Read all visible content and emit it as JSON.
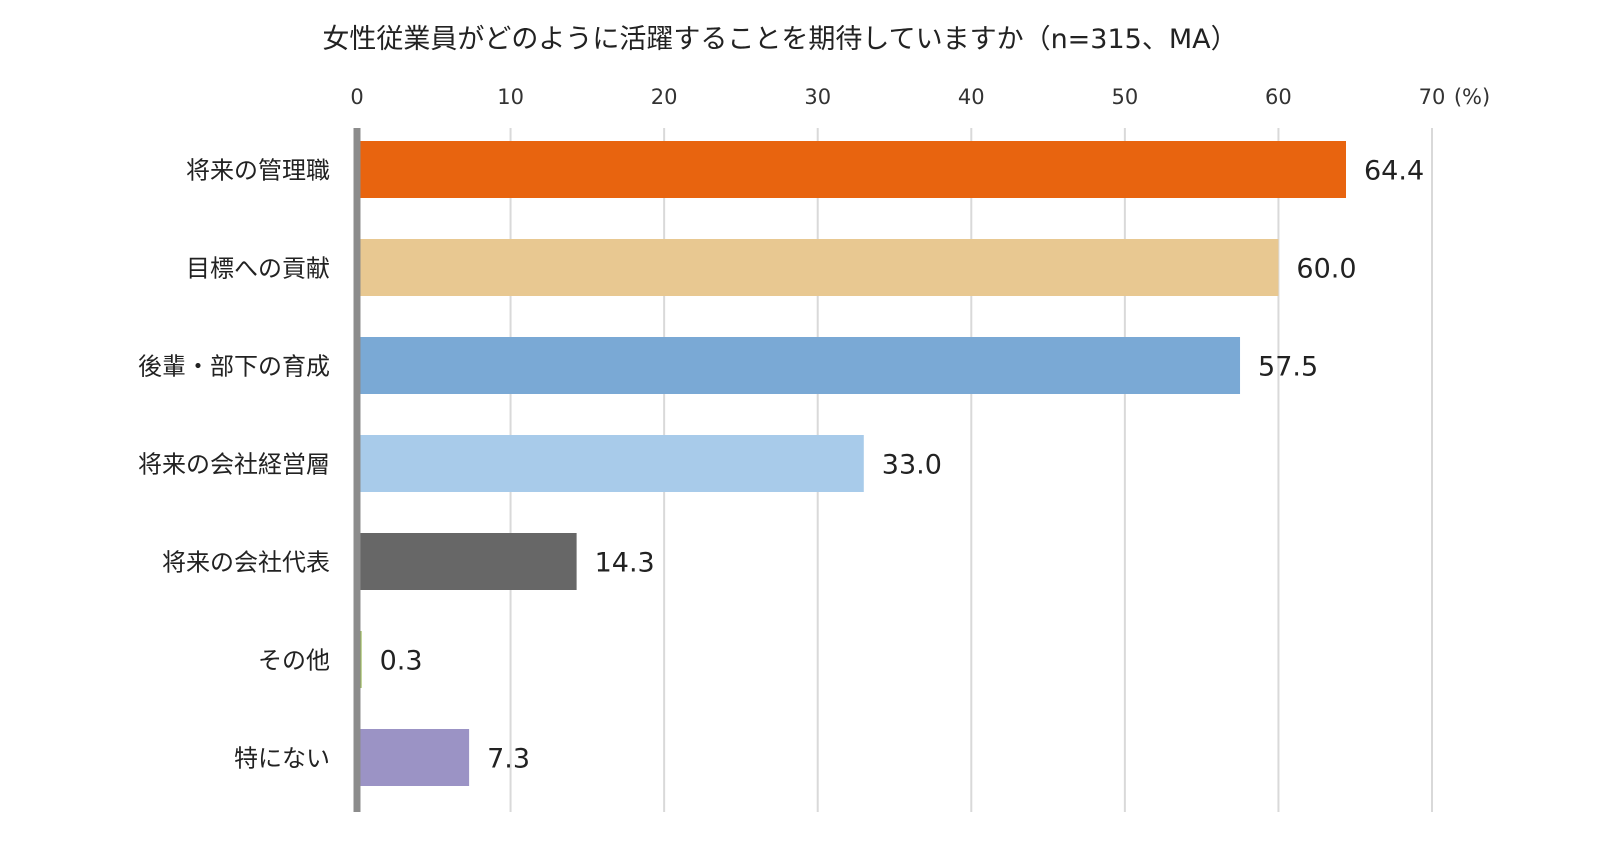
{
  "chart_data": {
    "type": "bar",
    "orientation": "horizontal",
    "title": "女性従業員がどのように活躍することを期待していますか（n=315、MA）",
    "unit_label": "(%)",
    "xlim": [
      0,
      70
    ],
    "ticks": [
      0,
      10,
      20,
      30,
      40,
      50,
      60,
      70
    ],
    "tick_labels": [
      "0",
      "10",
      "20",
      "30",
      "40",
      "50",
      "60",
      "70"
    ],
    "grid": true,
    "axis_position": "top",
    "categories": [
      "将来の管理職",
      "目標への貢献",
      "後輩・部下の育成",
      "将来の会社経営層",
      "将来の会社代表",
      "その他",
      "特にない"
    ],
    "values": [
      64.4,
      60.0,
      57.5,
      33.0,
      14.3,
      0.3,
      7.3
    ],
    "value_labels": [
      "64.4",
      "60.0",
      "57.5",
      "33.0",
      "14.3",
      "0.3",
      "7.3"
    ],
    "colors": [
      "#e8640f",
      "#e8c891",
      "#7aa9d5",
      "#a8cbea",
      "#676767",
      "#9bba59",
      "#9b93c5"
    ]
  }
}
